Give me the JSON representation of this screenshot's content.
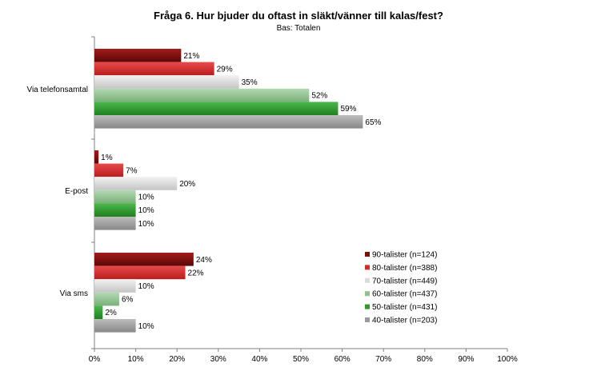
{
  "chart_data": {
    "type": "bar",
    "orientation": "horizontal",
    "title": "Fråga 6. Hur bjuder du oftast in släkt/vänner till kalas/fest?",
    "subtitle": "Bas: Totalen",
    "categories": [
      "Via telefonsamtal",
      "E-post",
      "Via sms"
    ],
    "series": [
      {
        "name": "90-talister (n=124)",
        "values": [
          21,
          1,
          24
        ],
        "color": "#7a0f0f",
        "gradient": [
          "#5c0606",
          "#a31c1c"
        ]
      },
      {
        "name": "80-talister (n=388)",
        "values": [
          29,
          7,
          22
        ],
        "color": "#d42a2a",
        "gradient": [
          "#b81d1d",
          "#e84a4a"
        ]
      },
      {
        "name": "70-talister (n=449)",
        "values": [
          35,
          20,
          10
        ],
        "color": "#dcdcdc",
        "gradient": [
          "#c4c4c4",
          "#f2f2f2"
        ]
      },
      {
        "name": "60-talister (n=437)",
        "values": [
          52,
          10,
          6
        ],
        "color": "#8fc28f",
        "gradient": [
          "#79b079",
          "#b3d9b3"
        ]
      },
      {
        "name": "50-talister (n=431)",
        "values": [
          59,
          10,
          2
        ],
        "color": "#2e9a2e",
        "gradient": [
          "#1f801f",
          "#4bb84b"
        ]
      },
      {
        "name": "40-talister (n=203)",
        "values": [
          65,
          10,
          10
        ],
        "color": "#9a9a9a",
        "gradient": [
          "#878787",
          "#bdbdbd"
        ]
      }
    ],
    "value_suffix": "%",
    "xlim": [
      0,
      100
    ],
    "x_ticks": [
      "0%",
      "10%",
      "20%",
      "30%",
      "40%",
      "50%",
      "60%",
      "70%",
      "80%",
      "90%",
      "100%"
    ],
    "grid": false,
    "legend_position": "right"
  }
}
